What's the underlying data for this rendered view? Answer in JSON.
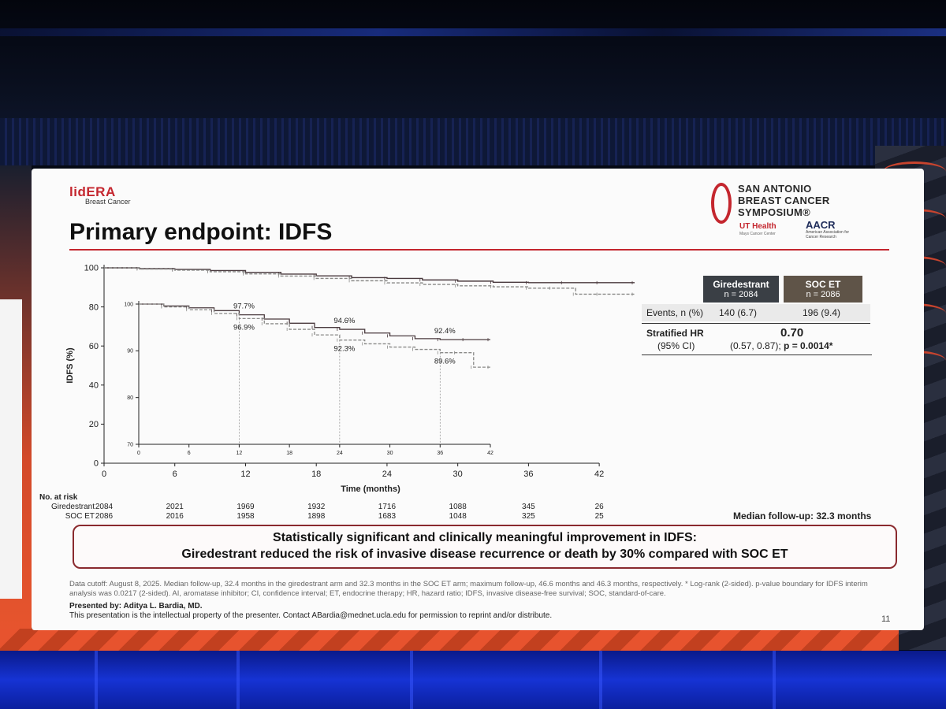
{
  "slide": {
    "brand": "lidERA",
    "brand_sub": "Breast Cancer",
    "title": "Primary endpoint: IDFS",
    "logo": {
      "line1": "SAN ANTONIO",
      "line2": "BREAST CANCER",
      "line3": "SYMPOSIUM®",
      "ut": "UT Health",
      "ut_sub": "Mays Cancer Center",
      "aacr": "AACR",
      "aacr_sub": "American Association for Cancer Research"
    },
    "table": {
      "col1_name": "Giredestrant",
      "col1_n": "n = 2084",
      "col2_name": "SOC ET",
      "col2_n": "n = 2086",
      "events_label": "Events, n (%)",
      "events_col1": "140 (6.7)",
      "events_col2": "196 (9.4)",
      "hr_label": "Stratified HR",
      "hr_ci_label": "(95% CI)",
      "hr_value": "0.70",
      "hr_ci": "(0.57, 0.87); ",
      "p_value": "p = 0.0014*"
    },
    "risk_table": {
      "header": "No. at risk",
      "rows": [
        {
          "label": "Giredestrant",
          "values": [
            "2084",
            "2021",
            "1969",
            "1932",
            "1716",
            "1088",
            "345",
            "26"
          ]
        },
        {
          "label": "SOC ET",
          "values": [
            "2086",
            "2016",
            "1958",
            "1898",
            "1683",
            "1048",
            "325",
            "25"
          ]
        }
      ]
    },
    "median_followup": "Median follow-up: 32.3 months",
    "callout_line1": "Statistically significant and clinically meaningful improvement in IDFS:",
    "callout_line2": "Giredestrant reduced the risk of invasive disease recurrence or death by 30% compared with SOC ET",
    "footnote": "Data cutoff: August 8, 2025. Median follow-up, 32.4 months in the giredestrant arm and 32.3 months in the SOC ET arm; maximum follow-up, 46.6 months and 46.3 months, respectively. * Log-rank (2-sided). p-value boundary for IDFS interim analysis was 0.0217 (2-sided). AI, aromatase inhibitor; CI, confidence interval; ET, endocrine therapy; HR, hazard ratio; IDFS, invasive disease-free survival; SOC, standard-of-care.",
    "presented_by": "Presented by: Aditya L. Bardia, MD.",
    "property_note": "This presentation is the intellectual property of the presenter. Contact ABardia@mednet.ucla.edu for permission to reprint and/or distribute.",
    "page_number": "11"
  },
  "colors": {
    "accent": "#c4262e",
    "giredestrant": "#4a3a3e",
    "soc": "#8a8a88",
    "header_dark": "#3a3f45",
    "header_brown": "#5f5448"
  },
  "chart_data": [
    {
      "type": "line",
      "title": "",
      "xlabel": "Time (months)",
      "ylabel": "IDFS (%)",
      "xlim": [
        0,
        45
      ],
      "ylim": [
        0,
        100
      ],
      "x_ticks": [
        0,
        6,
        12,
        18,
        24,
        30,
        36,
        42
      ],
      "y_ticks": [
        0,
        20,
        40,
        60,
        80,
        100
      ],
      "series": [
        {
          "name": "Giredestrant",
          "x": [
            0,
            3,
            6,
            9,
            12,
            15,
            18,
            21,
            24,
            27,
            30,
            33,
            36,
            39,
            42,
            45
          ],
          "values": [
            100,
            99.6,
            99.2,
            98.6,
            97.7,
            96.8,
            95.9,
            95.0,
            94.6,
            93.8,
            93.2,
            92.6,
            92.4,
            92.4,
            92.4,
            92.4
          ]
        },
        {
          "name": "SOC ET",
          "x": [
            0,
            3,
            6,
            9,
            12,
            15,
            18,
            21,
            24,
            27,
            30,
            33,
            36,
            38,
            40,
            42,
            45
          ],
          "values": [
            100,
            99.4,
            98.8,
            98.0,
            96.9,
            95.8,
            94.6,
            93.4,
            92.3,
            91.5,
            90.8,
            90.3,
            89.6,
            89.6,
            86.5,
            86.5,
            86.5
          ]
        }
      ]
    },
    {
      "type": "line",
      "title": "",
      "inset": true,
      "xlim": [
        0,
        42
      ],
      "ylim": [
        70,
        100
      ],
      "x_ticks": [
        0,
        6,
        12,
        18,
        24,
        30,
        36,
        42
      ],
      "y_ticks": [
        70,
        80,
        90,
        100
      ],
      "series": [
        {
          "name": "Giredestrant",
          "x": [
            0,
            3,
            6,
            9,
            12,
            15,
            18,
            21,
            24,
            27,
            30,
            33,
            36,
            39,
            42
          ],
          "values": [
            100,
            99.6,
            99.2,
            98.6,
            97.7,
            96.8,
            95.9,
            95.0,
            94.6,
            93.8,
            93.2,
            92.6,
            92.4,
            92.4,
            92.4
          ]
        },
        {
          "name": "SOC ET",
          "x": [
            0,
            3,
            6,
            9,
            12,
            15,
            18,
            21,
            24,
            27,
            30,
            33,
            36,
            38,
            40,
            42
          ],
          "values": [
            100,
            99.4,
            98.8,
            98.0,
            96.9,
            95.8,
            94.6,
            93.4,
            92.3,
            91.5,
            90.8,
            90.3,
            89.6,
            89.6,
            86.5,
            86.5
          ]
        }
      ],
      "annotations": [
        {
          "x": 12,
          "text": "97.7%",
          "series": "Giredestrant"
        },
        {
          "x": 12,
          "text": "96.9%",
          "series": "SOC ET"
        },
        {
          "x": 24,
          "text": "94.6%",
          "series": "Giredestrant"
        },
        {
          "x": 24,
          "text": "92.3%",
          "series": "SOC ET"
        },
        {
          "x": 36,
          "text": "92.4%",
          "series": "Giredestrant"
        },
        {
          "x": 36,
          "text": "89.6%",
          "series": "SOC ET"
        }
      ]
    }
  ]
}
